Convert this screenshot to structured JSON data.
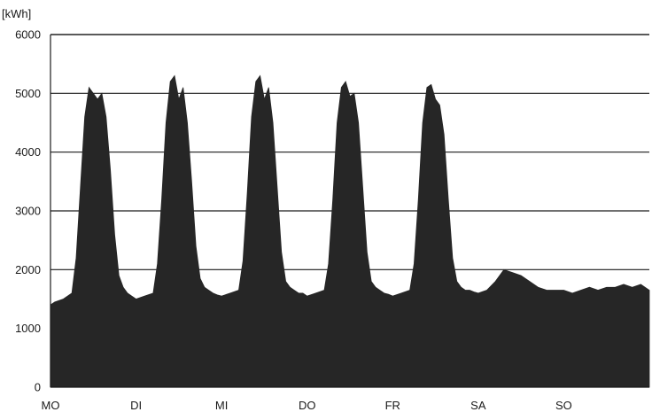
{
  "chart_data": {
    "type": "area",
    "title": "",
    "xlabel": "",
    "ylabel": "[kWh]",
    "ylim": [
      0,
      6000
    ],
    "y_ticks": [
      0,
      1000,
      2000,
      3000,
      4000,
      5000,
      6000
    ],
    "x_ticks": [
      "MO",
      "DI",
      "MI",
      "DO",
      "FR",
      "SA",
      "SO"
    ],
    "xlim": [
      0,
      7
    ],
    "grid": "horizontal",
    "legend": "none",
    "fill_color": "#262626",
    "series": [
      {
        "x": [
          0,
          0.05,
          0.15,
          0.25,
          0.3,
          0.35,
          0.4,
          0.45,
          0.5,
          0.55,
          0.6,
          0.65,
          0.7,
          0.75,
          0.8,
          0.85,
          0.9,
          0.95,
          1.0,
          1.1,
          1.2,
          1.25,
          1.3,
          1.35,
          1.4,
          1.45,
          1.5,
          1.55,
          1.6,
          1.65,
          1.7,
          1.75,
          1.8,
          1.85,
          1.9,
          1.95,
          2.0,
          2.1,
          2.2,
          2.25,
          2.3,
          2.35,
          2.4,
          2.45,
          2.5,
          2.55,
          2.6,
          2.65,
          2.7,
          2.75,
          2.8,
          2.85,
          2.9,
          2.95,
          3.0,
          3.1,
          3.2,
          3.25,
          3.3,
          3.35,
          3.4,
          3.45,
          3.5,
          3.55,
          3.6,
          3.65,
          3.7,
          3.75,
          3.8,
          3.85,
          3.9,
          3.95,
          4.0,
          4.1,
          4.2,
          4.25,
          4.3,
          4.35,
          4.4,
          4.45,
          4.5,
          4.55,
          4.6,
          4.65,
          4.7,
          4.75,
          4.8,
          4.85,
          4.9,
          4.95,
          5.0,
          5.1,
          5.2,
          5.3,
          5.4,
          5.5,
          5.6,
          5.7,
          5.8,
          5.9,
          6.0,
          6.1,
          6.2,
          6.3,
          6.4,
          6.5,
          6.6,
          6.7,
          6.8,
          6.9,
          7.0
        ],
        "y": [
          1400,
          1450,
          1500,
          1600,
          2200,
          3400,
          4600,
          5100,
          5000,
          4900,
          5000,
          4600,
          3700,
          2600,
          1900,
          1700,
          1600,
          1550,
          1500,
          1550,
          1600,
          2100,
          3200,
          4500,
          5200,
          5300,
          4900,
          5100,
          4500,
          3500,
          2400,
          1850,
          1700,
          1650,
          1600,
          1570,
          1550,
          1600,
          1650,
          2150,
          3300,
          4600,
          5200,
          5300,
          4900,
          5100,
          4500,
          3400,
          2300,
          1800,
          1700,
          1650,
          1600,
          1600,
          1550,
          1600,
          1650,
          2100,
          3200,
          4500,
          5100,
          5200,
          4950,
          5000,
          4500,
          3400,
          2300,
          1800,
          1700,
          1650,
          1600,
          1580,
          1550,
          1600,
          1650,
          2100,
          3200,
          4500,
          5100,
          5150,
          4900,
          4800,
          4300,
          3200,
          2200,
          1800,
          1700,
          1650,
          1650,
          1620,
          1600,
          1650,
          1800,
          2000,
          1950,
          1900,
          1800,
          1700,
          1650,
          1650,
          1650,
          1600,
          1650,
          1700,
          1650,
          1700,
          1700,
          1750,
          1700,
          1750,
          1650
        ]
      }
    ]
  }
}
